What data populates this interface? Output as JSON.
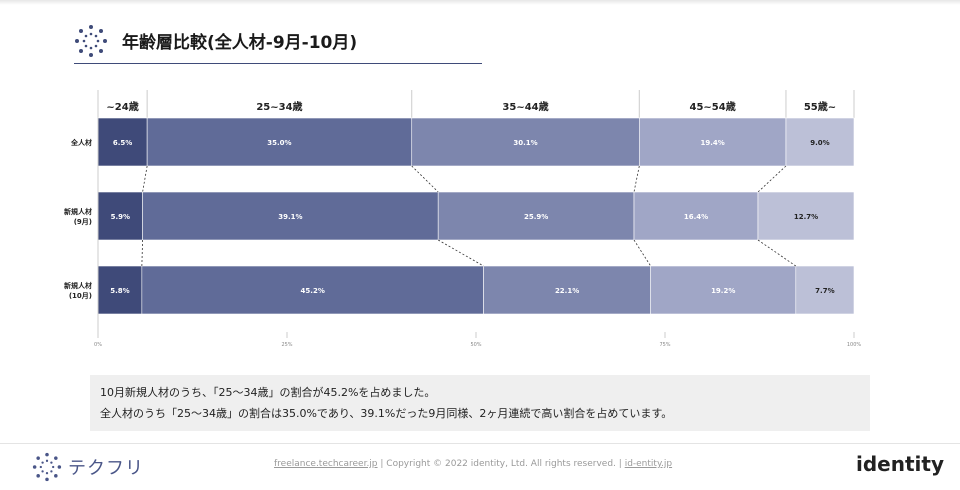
{
  "header": {
    "title": "年齢層比較(全人材-9月-10月)",
    "logo_icon": "dotted-circle-logo-icon"
  },
  "chart_data": {
    "type": "bar",
    "orientation": "horizontal-stacked-100",
    "categories": [
      "全人材",
      "新規人材\n(9月)",
      "新規人材\n(10月)"
    ],
    "age_groups": [
      "~24歳",
      "25~34歳",
      "35~44歳",
      "45~54歳",
      "55歳~"
    ],
    "series": [
      {
        "name": "~24歳",
        "values": [
          6.5,
          5.9,
          5.8
        ],
        "labels": [
          "6.5%",
          "5.9%",
          "5.8%"
        ]
      },
      {
        "name": "25~34歳",
        "values": [
          35.0,
          39.1,
          45.2
        ],
        "labels": [
          "35.0%",
          "39.1%",
          "45.2%"
        ]
      },
      {
        "name": "35~44歳",
        "values": [
          30.1,
          25.9,
          22.1
        ],
        "labels": [
          "30.1%",
          "25.9%",
          "22.1%"
        ]
      },
      {
        "name": "45~54歳",
        "values": [
          19.4,
          16.4,
          19.2
        ],
        "labels": [
          "19.4%",
          "16.4%",
          "19.2%"
        ]
      },
      {
        "name": "55歳~",
        "values": [
          9.0,
          12.7,
          7.7
        ],
        "labels": [
          "9.0%",
          "12.7%",
          "7.7%"
        ]
      }
    ],
    "xlim": [
      0,
      100
    ],
    "xticks": [
      0,
      25,
      50,
      75,
      100
    ],
    "xtick_labels": [
      "0%",
      "25%",
      "50%",
      "75%",
      "100%"
    ],
    "colors": [
      "#3f4a79",
      "#606b98",
      "#7d86ad",
      "#a0a6c6",
      "#bcc0d7"
    ],
    "label_colors": [
      "#ffffff",
      "#ffffff",
      "#ffffff",
      "#ffffff",
      "#222222"
    ],
    "connector_lines": "dashed",
    "grid": false
  },
  "note": {
    "line1": "10月新規人材のうち、「25～34歳」の割合が45.2%を占めました。",
    "line2": "全人材のうち「25～34歳」の割合は35.0%であり、39.1%だった9月同様、2ヶ月連続で高い割合を占めています。"
  },
  "footer": {
    "brand_name": "テクフリ",
    "brand_icon": "dotted-circle-logo-icon",
    "link1": "freelance.techcareer.jp",
    "sep1": " | ",
    "copyright": "Copyright © 2022 identity, Ltd. All rights reserved.",
    "sep2": " | ",
    "link2": "id-entity.jp",
    "company_logo_text": "identity"
  }
}
